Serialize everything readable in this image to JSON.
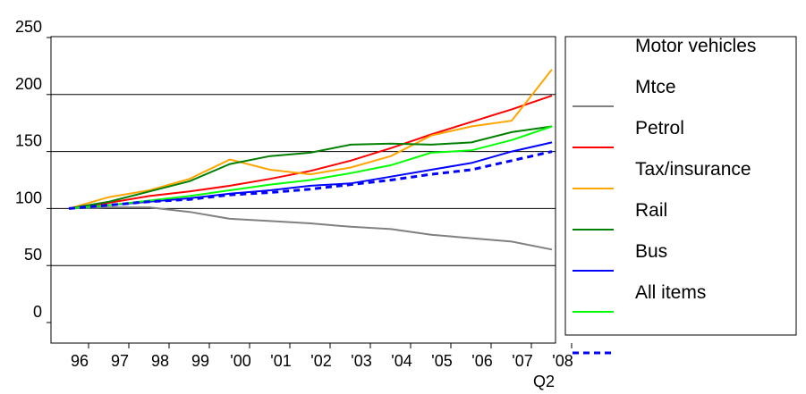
{
  "chart_data": {
    "type": "line",
    "title": "",
    "xlabel": "",
    "ylabel": "",
    "ylim": [
      0,
      250
    ],
    "y_ticks": [
      0,
      50,
      100,
      150,
      200,
      250
    ],
    "x_tick_labels": [
      "96",
      "97",
      "98",
      "99",
      "'00",
      "'01",
      "'02",
      "'03",
      "'04",
      "'05",
      "'06",
      "'07",
      "'08"
    ],
    "x_tick_sublabel": "Q2",
    "grid": "horizontal",
    "legend_position": "right",
    "series": [
      {
        "name": "Motor vehicles",
        "color": "#ffffff",
        "dash": "solid",
        "values": [
          100,
          100,
          100,
          100,
          100,
          100,
          100,
          100,
          100,
          100,
          100,
          100,
          100
        ]
      },
      {
        "name": "Mtce",
        "color": "#808080",
        "dash": "solid",
        "values": [
          100,
          101,
          101,
          97,
          91,
          89,
          87,
          84,
          82,
          77,
          74,
          71,
          64
        ]
      },
      {
        "name": "Petrol",
        "color": "#ff0000",
        "dash": "solid",
        "values": [
          100,
          105,
          111,
          115,
          120,
          126,
          133,
          142,
          153,
          165,
          176,
          187,
          199
        ]
      },
      {
        "name": "Tax/insurance",
        "color": "#ffa500",
        "dash": "solid",
        "values": [
          100,
          110,
          116,
          126,
          143,
          134,
          130,
          136,
          146,
          164,
          172,
          177,
          222
        ]
      },
      {
        "name": "Rail",
        "color": "#008000",
        "dash": "solid",
        "values": [
          100,
          106,
          115,
          124,
          139,
          146,
          149,
          156,
          157,
          156,
          158,
          167,
          172
        ]
      },
      {
        "name": "Bus",
        "color": "#0000ff",
        "dash": "solid",
        "values": [
          100,
          103,
          106,
          109,
          113,
          116,
          120,
          122,
          128,
          134,
          140,
          150,
          158
        ]
      },
      {
        "name": "All items",
        "color": "#00ff00",
        "dash": "solid",
        "values": [
          100,
          103,
          107,
          111,
          116,
          121,
          125,
          131,
          138,
          149,
          151,
          160,
          172
        ]
      },
      {
        "name": "",
        "color": "#0000ff",
        "dash": "dashed",
        "values": [
          100,
          103,
          106,
          108,
          112,
          114,
          117,
          121,
          125,
          130,
          134,
          142,
          150
        ]
      }
    ]
  }
}
